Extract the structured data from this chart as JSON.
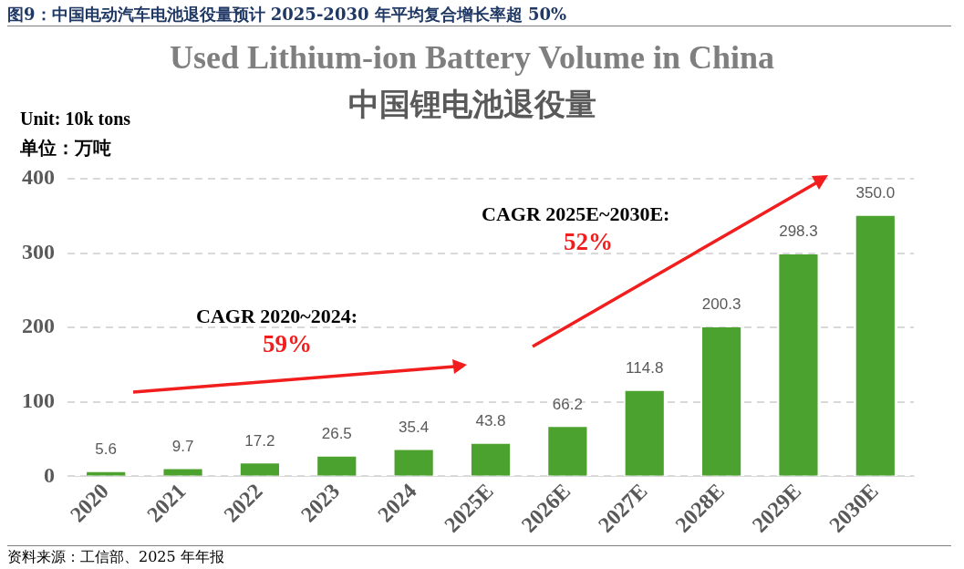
{
  "chart_data": {
    "type": "bar",
    "title": "Used Lithium-ion Battery Volume in China",
    "subtitle": "中国锂电池退役量",
    "ylabel": "Unit: 10k tons\n单位：万吨",
    "categories": [
      "2020",
      "2021",
      "2022",
      "2023",
      "2024",
      "2025E",
      "2026E",
      "2027E",
      "2028E",
      "2029E",
      "2030E"
    ],
    "values": [
      5.6,
      9.7,
      17.2,
      26.5,
      35.4,
      43.8,
      66.2,
      114.8,
      200.3,
      298.3,
      350.0
    ],
    "value_labels": [
      "5.6",
      "9.7",
      "17.2",
      "26.5",
      "35.4",
      "43.8",
      "66.2",
      "114.8",
      "200.3",
      "298.3",
      "350.0"
    ],
    "color": "#4ca22f",
    "ylim": [
      0,
      400
    ],
    "yticks": [
      0,
      100,
      200,
      300,
      400
    ],
    "grid": "y",
    "legend": false,
    "annotations": [
      "图9：中国电动汽车电池退役量预计 2025-2030 年平均复合增长率超 50%",
      "CAGR 2020~2024:",
      "59%",
      "CAGR 2025E~2030E:",
      "52%",
      "资料来源：工信部、2025 年年报"
    ]
  }
}
